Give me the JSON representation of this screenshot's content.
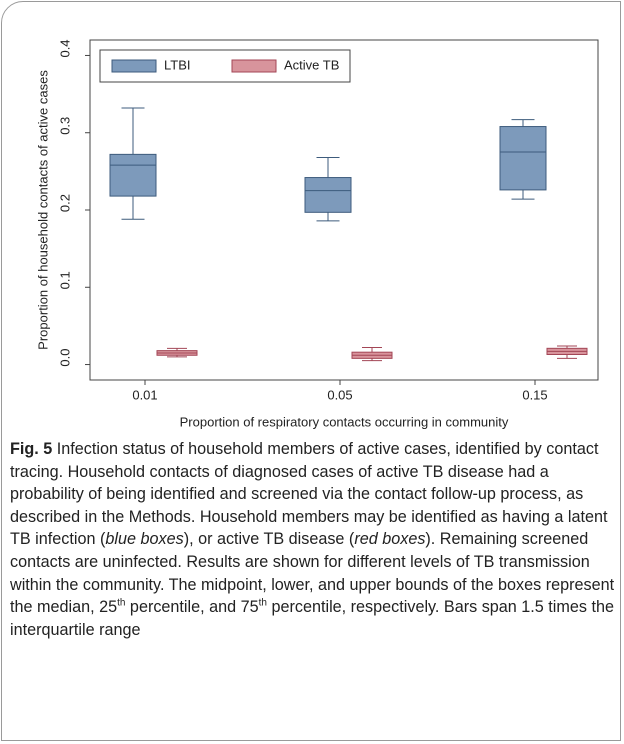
{
  "chart_data": {
    "type": "box",
    "y_label": "Proportion of household contacts of active cases",
    "x_label": "Proportion of respiratory contacts occurring in community",
    "categories": [
      "0.01",
      "0.05",
      "0.15"
    ],
    "ylim": [
      -0.02,
      0.42
    ],
    "yticks": [
      {
        "value": 0,
        "label": "0.0"
      },
      0.1,
      0.2,
      0.3,
      0.4
    ],
    "legend": "top-left",
    "series": [
      {
        "name": "LTBI",
        "color": "#7d9abb",
        "edge": "#3d5b7c",
        "low": [
          0.188,
          0.186,
          0.214
        ],
        "q1": [
          0.218,
          0.197,
          0.226
        ],
        "median": [
          0.258,
          0.225,
          0.275
        ],
        "q3": [
          0.272,
          0.242,
          0.308
        ],
        "high": [
          0.332,
          0.268,
          0.317
        ]
      },
      {
        "name": "Active TB",
        "color": "#d8949c",
        "edge": "#a34656",
        "low": [
          0.01,
          0.005,
          0.008
        ],
        "q1": [
          0.012,
          0.008,
          0.013
        ],
        "median": [
          0.015,
          0.012,
          0.017
        ],
        "q3": [
          0.018,
          0.016,
          0.021
        ],
        "high": [
          0.021,
          0.022,
          0.024
        ]
      }
    ]
  },
  "caption": {
    "segments": [
      {
        "text": "Fig. 5",
        "style": "bold"
      },
      {
        "text": " Infection status of household members of active cases, identified by contact tracing. Household contacts of diagnosed cases of active TB disease had a probability of being identified and screened via the contact follow-up process, as described in the Methods. Household members may be identified as having a latent TB infection (",
        "style": "normal"
      },
      {
        "text": "blue boxes",
        "style": "italic"
      },
      {
        "text": "), or active TB disease (",
        "style": "normal"
      },
      {
        "text": "red boxes",
        "style": "italic"
      },
      {
        "text": "). Remaining screened contacts are uninfected. Results are shown for different levels of TB transmission within the community. The midpoint, lower, and upper bounds of the boxes represent the median, 25",
        "style": "normal"
      },
      {
        "text": "th",
        "style": "sup"
      },
      {
        "text": " percentile, and 75",
        "style": "normal"
      },
      {
        "text": "th",
        "style": "sup"
      },
      {
        "text": " percentile, respectively. Bars span 1.5 times the interquartile range",
        "style": "normal"
      }
    ]
  }
}
